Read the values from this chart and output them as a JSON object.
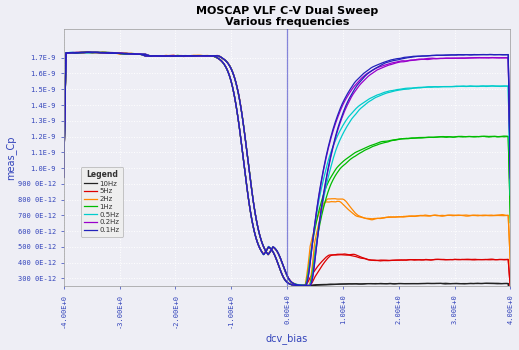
{
  "title_line1": "MOSCAP VLF C-V Dual Sweep",
  "title_line2": "Various frequencies",
  "xlabel": "dcv_bias",
  "ylabel": "meas_Cp",
  "xlim": [
    -4,
    4
  ],
  "ylim": [
    2.5e-10,
    1.88e-09
  ],
  "vline_x": 0,
  "legend_labels": [
    "10Hz",
    "5Hz",
    "2Hz",
    "1Hz",
    "0.5Hz",
    "0.2Hz",
    "0.1Hz"
  ],
  "line_colors": [
    "#222222",
    "#dd0000",
    "#ff8800",
    "#00bb00",
    "#00cccc",
    "#9900cc",
    "#2222bb"
  ],
  "background_color": "#eeeef5",
  "grid_color": "#ffffff",
  "axis_label_color": "#3344bb",
  "tick_label_color": "#3344bb",
  "title_color": "#000000",
  "C_acc": 1.72e-09,
  "C_min": 2.55e-10,
  "x_ticks": [
    -4,
    -3,
    -2,
    -1,
    0,
    1,
    2,
    3,
    4
  ],
  "x_tick_labels": [
    "-4.00E+0",
    "-3.00E+0",
    "-2.00E+0",
    "-1.00E+0",
    "0.00E+0",
    "1.00E+0",
    "2.00E+0",
    "3.00E+0",
    "4.00E+0"
  ],
  "y_ticks": [
    3e-10,
    4e-10,
    5e-10,
    6e-10,
    7e-10,
    8e-10,
    9e-10,
    1e-09,
    1.1e-09,
    1.2e-09,
    1.3e-09,
    1.4e-09,
    1.5e-09,
    1.6e-09,
    1.7e-09
  ],
  "y_tick_labels": [
    "300 0E-12",
    "400 0E-12",
    "500 0E-12",
    "600 0E-12",
    "700 0E-12",
    "800 0E-12",
    "900 0E-12",
    "1.0E-9",
    "1.1E-9",
    "1.2E-9",
    "1.3E-9",
    "1.4E-9",
    "1.5E-9",
    "1.6E-9",
    "1.7E-9"
  ]
}
